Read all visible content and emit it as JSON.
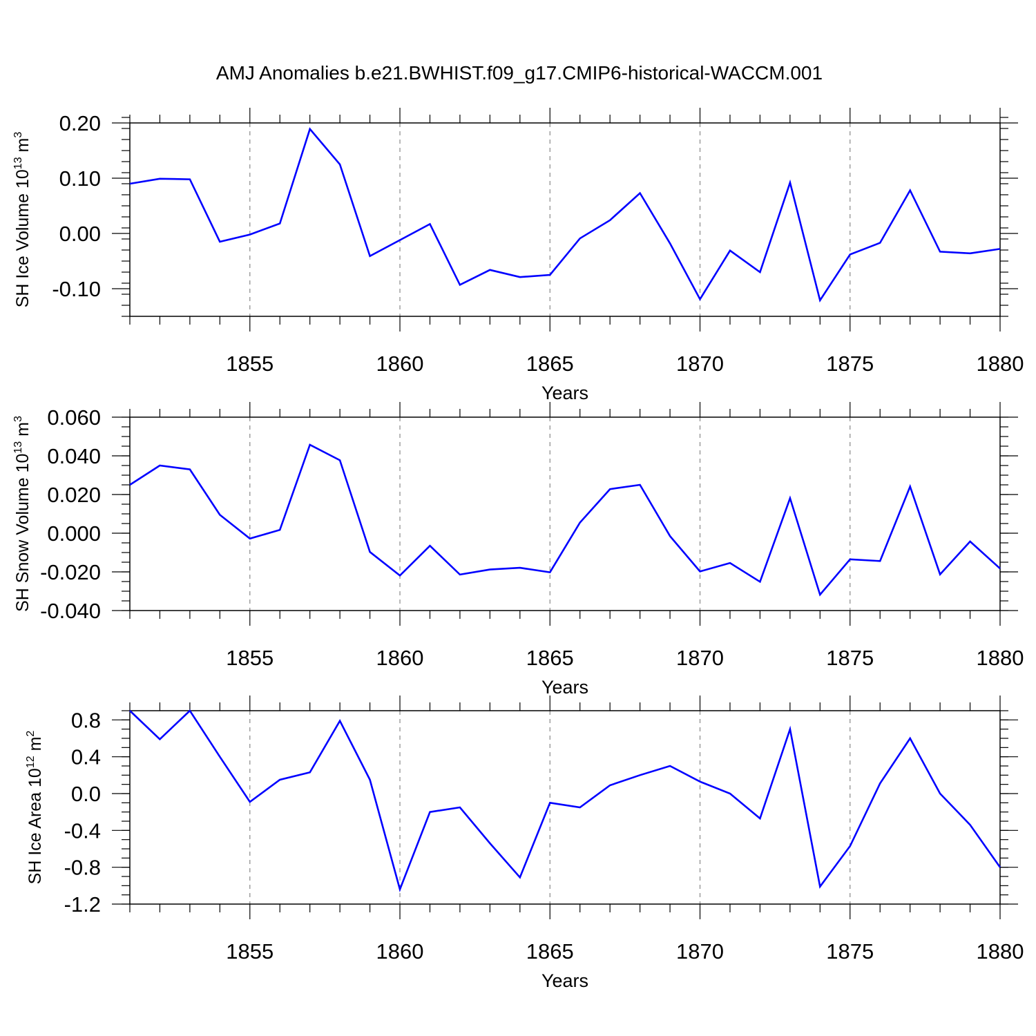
{
  "figure": {
    "title": "AMJ Anomalies b.e21.BWHIST.f09_g17.CMIP6-historical-WACCM.001"
  },
  "colors": {
    "line": "#0000ff",
    "axis": "#000000",
    "gridline": "#888888",
    "background": "#ffffff"
  },
  "chart_data": [
    {
      "type": "line",
      "title": "",
      "xlabel": "Years",
      "ylabel_main": "SH Ice Volume 10",
      "ylabel_exp": "13",
      "ylabel_unit": " m",
      "ylabel_unit_exp": "3",
      "xlim": [
        1851,
        1880
      ],
      "ylim": [
        -0.15,
        0.2
      ],
      "xticks": [
        "1855",
        "1860",
        "1865",
        "1870",
        "1875",
        "1880"
      ],
      "yticks": [
        "0.20",
        "0.10",
        "0.00",
        "-0.10"
      ],
      "grid": "vertical dashed at labeled years",
      "series": [
        {
          "x": [
            1851,
            1852,
            1853,
            1854,
            1855,
            1856,
            1857,
            1858,
            1859,
            1860,
            1861,
            1862,
            1863,
            1864,
            1865,
            1866,
            1867,
            1868,
            1869,
            1870,
            1871,
            1872,
            1873,
            1874,
            1875,
            1876,
            1877,
            1878,
            1879,
            1880
          ],
          "values": [
            0.09,
            0.099,
            0.098,
            -0.015,
            -0.002,
            0.018,
            0.189,
            0.125,
            -0.041,
            -0.012,
            0.017,
            -0.093,
            -0.066,
            -0.079,
            -0.075,
            -0.009,
            0.024,
            0.073,
            -0.018,
            -0.119,
            -0.031,
            -0.07,
            0.092,
            -0.121,
            -0.038,
            -0.017,
            0.078,
            -0.033,
            -0.036,
            -0.028
          ]
        }
      ]
    },
    {
      "type": "line",
      "title": "",
      "xlabel": "Years",
      "ylabel_main": "SH Snow Volume 10",
      "ylabel_exp": "13",
      "ylabel_unit": " m",
      "ylabel_unit_exp": "3",
      "xlim": [
        1851,
        1880
      ],
      "ylim": [
        -0.04,
        0.06
      ],
      "xticks": [
        "1855",
        "1860",
        "1865",
        "1870",
        "1875",
        "1880"
      ],
      "yticks": [
        "0.060",
        "0.040",
        "0.020",
        "0.000",
        "-0.020",
        "-0.040"
      ],
      "grid": "vertical dashed at labeled years",
      "series": [
        {
          "x": [
            1851,
            1852,
            1853,
            1854,
            1855,
            1856,
            1857,
            1858,
            1859,
            1860,
            1861,
            1862,
            1863,
            1864,
            1865,
            1866,
            1867,
            1868,
            1869,
            1870,
            1871,
            1872,
            1873,
            1874,
            1875,
            1876,
            1877,
            1878,
            1879,
            1880
          ],
          "values": [
            0.025,
            0.035,
            0.033,
            0.0095,
            -0.0028,
            0.0017,
            0.0457,
            0.0377,
            -0.0097,
            -0.0219,
            -0.0065,
            -0.0214,
            -0.0188,
            -0.0179,
            -0.0202,
            0.0055,
            0.0228,
            0.025,
            -0.0015,
            -0.0198,
            -0.0154,
            -0.0251,
            0.0181,
            -0.0318,
            -0.0135,
            -0.0144,
            0.0241,
            -0.0213,
            -0.0043,
            -0.0183
          ]
        }
      ]
    },
    {
      "type": "line",
      "title": "",
      "xlabel": "Years",
      "ylabel_main": "SH Ice Area 10",
      "ylabel_exp": "12",
      "ylabel_unit": " m",
      "ylabel_unit_exp": "2",
      "xlim": [
        1851,
        1880
      ],
      "ylim": [
        -1.2,
        0.9
      ],
      "xticks": [
        "1855",
        "1860",
        "1865",
        "1870",
        "1875",
        "1880"
      ],
      "yticks": [
        "0.8",
        "0.4",
        "0.0",
        "-0.4",
        "-0.8",
        "-1.2"
      ],
      "grid": "vertical dashed at labeled years",
      "series": [
        {
          "x": [
            1851,
            1852,
            1853,
            1854,
            1855,
            1856,
            1857,
            1858,
            1859,
            1860,
            1861,
            1862,
            1863,
            1864,
            1865,
            1866,
            1867,
            1868,
            1869,
            1870,
            1871,
            1872,
            1873,
            1874,
            1875,
            1876,
            1877,
            1878,
            1879,
            1880
          ],
          "values": [
            0.9,
            0.59,
            0.9,
            0.4,
            -0.09,
            0.15,
            0.23,
            0.79,
            0.15,
            -1.04,
            -0.2,
            -0.15,
            -0.54,
            -0.91,
            -0.1,
            -0.15,
            0.09,
            0.2,
            0.3,
            0.13,
            0.0,
            -0.27,
            0.7,
            -1.01,
            -0.57,
            0.11,
            0.6,
            0.0,
            -0.34,
            -0.8
          ]
        }
      ]
    }
  ]
}
